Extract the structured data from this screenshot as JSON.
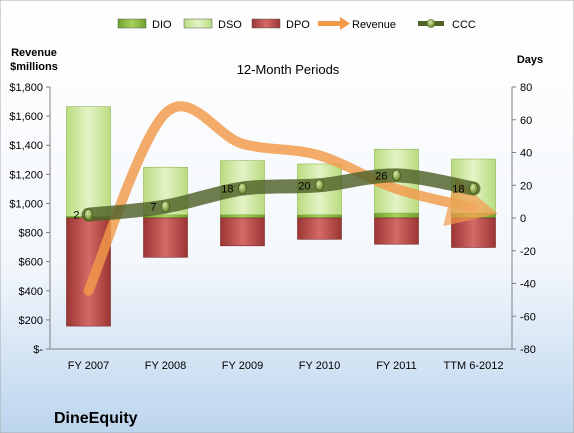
{
  "chart_data": {
    "type": "bar",
    "title": "12-Month Periods",
    "company": "DineEquity",
    "left_axis_label": [
      "Revenue",
      "$millions"
    ],
    "right_axis_label": "Days",
    "categories": [
      "FY 2007",
      "FY 2008",
      "FY 2009",
      "FY 2010",
      "FY 2011",
      "TTM 6-2012"
    ],
    "y_left": {
      "min": 0,
      "max": 1800,
      "step": 200,
      "tick_labels": [
        "$-",
        "$200",
        "$400",
        "$600",
        "$800",
        "$1,000",
        "$1,200",
        "$1,400",
        "$1,600",
        "$1,800"
      ]
    },
    "y_right": {
      "min": -80,
      "max": 80,
      "step": 20,
      "tick_labels": [
        "-80",
        "-60",
        "-40",
        "-20",
        "0",
        "20",
        "40",
        "60",
        "80"
      ]
    },
    "legend": [
      {
        "key": "dio",
        "label": "DIO"
      },
      {
        "key": "dso",
        "label": "DSO"
      },
      {
        "key": "dpo",
        "label": "DPO"
      },
      {
        "key": "revenue",
        "label": "Revenue"
      },
      {
        "key": "ccc",
        "label": "CCC"
      }
    ],
    "series": [
      {
        "name": "DIO",
        "axis": "right",
        "values": [
          1,
          2,
          2,
          2,
          3,
          3
        ]
      },
      {
        "name": "DSO",
        "axis": "right",
        "values": [
          67,
          29,
          33,
          31,
          39,
          33
        ]
      },
      {
        "name": "DPO",
        "axis": "right",
        "values": [
          -66,
          -24,
          -17,
          -13,
          -16,
          -18
        ]
      },
      {
        "name": "Revenue",
        "axis": "left",
        "values": [
          400,
          1620,
          1410,
          1330,
          1100,
          970
        ]
      },
      {
        "name": "CCC",
        "axis": "right",
        "values": [
          2,
          7,
          18,
          20,
          26,
          18
        ]
      }
    ],
    "ccc_labels": [
      "2",
      "7",
      "18",
      "20",
      "26",
      "18"
    ],
    "colors": {
      "dio": "#8cbf3f",
      "dso": "#cfe8a0",
      "dpo": "#c0504d",
      "revenue": "#f39a4a",
      "ccc": "#4f6228",
      "background_top": "#ffffff",
      "background_bottom": "#bcd5ee"
    }
  }
}
